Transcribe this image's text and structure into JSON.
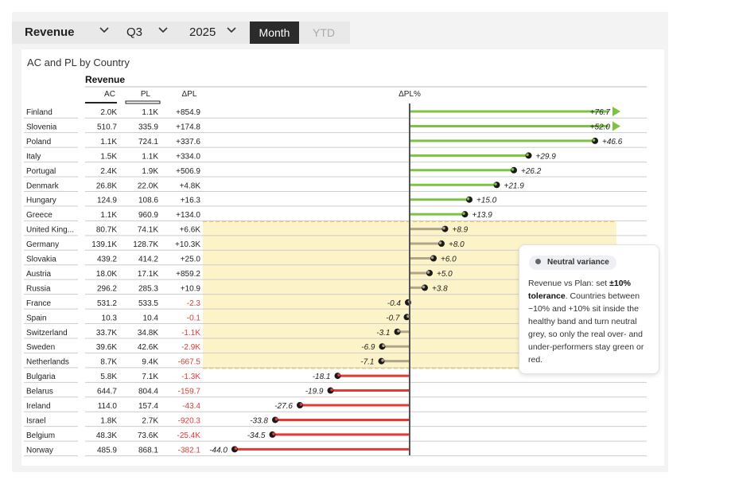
{
  "toolbar": {
    "measure": "Revenue",
    "quarter": "Q3",
    "year": "2025",
    "month_label": "Month",
    "ytd_label": "YTD"
  },
  "tooltip": {
    "pill": "Neutral variance",
    "text_before": "Revenue vs Plan: set ",
    "text_bold": "±10% tolerance",
    "text_after": ". Countries between −10% and +10% sit inside the healthy band and turn neutral grey, so only the real over- and under-performers stay green or red."
  },
  "chart_data": {
    "type": "table",
    "title": "AC and PL by Country",
    "group_header": "Revenue",
    "columns": [
      "AC",
      "PL",
      "ΔPL",
      "ΔPL%"
    ],
    "tolerance_pct": 10,
    "xlim": [
      -44,
      52
    ],
    "colors": {
      "positive": "#7dc242",
      "neutral": "#b0a58a",
      "negative": "#e53935",
      "band": "#fdf3c9",
      "band_border": "#e8c547",
      "negative_text": "#e53935"
    },
    "rows": [
      {
        "country": "Finland",
        "ac": "2.0K",
        "pl": "1.1K",
        "dpl": "+854.9",
        "pct": 76.7,
        "pct_label": "+76.7"
      },
      {
        "country": "Slovenia",
        "ac": "510.7",
        "pl": "335.9",
        "dpl": "+174.8",
        "pct": 52.0,
        "pct_label": "+52.0"
      },
      {
        "country": "Poland",
        "ac": "1.1K",
        "pl": "724.1",
        "dpl": "+337.6",
        "pct": 46.6,
        "pct_label": "+46.6"
      },
      {
        "country": "Italy",
        "ac": "1.5K",
        "pl": "1.1K",
        "dpl": "+334.0",
        "pct": 29.9,
        "pct_label": "+29.9"
      },
      {
        "country": "Portugal",
        "ac": "2.4K",
        "pl": "1.9K",
        "dpl": "+506.9",
        "pct": 26.2,
        "pct_label": "+26.2"
      },
      {
        "country": "Denmark",
        "ac": "26.8K",
        "pl": "22.0K",
        "dpl": "+4.8K",
        "pct": 21.9,
        "pct_label": "+21.9"
      },
      {
        "country": "Hungary",
        "ac": "124.9",
        "pl": "108.6",
        "dpl": "+16.3",
        "pct": 15.0,
        "pct_label": "+15.0"
      },
      {
        "country": "Greece",
        "ac": "1.1K",
        "pl": "960.9",
        "dpl": "+134.0",
        "pct": 13.9,
        "pct_label": "+13.9"
      },
      {
        "country": "United King...",
        "ac": "80.7K",
        "pl": "74.1K",
        "dpl": "+6.6K",
        "pct": 8.9,
        "pct_label": "+8.9"
      },
      {
        "country": "Germany",
        "ac": "139.1K",
        "pl": "128.7K",
        "dpl": "+10.3K",
        "pct": 8.0,
        "pct_label": "+8.0"
      },
      {
        "country": "Slovakia",
        "ac": "439.2",
        "pl": "414.2",
        "dpl": "+25.0",
        "pct": 6.0,
        "pct_label": "+6.0"
      },
      {
        "country": "Austria",
        "ac": "18.0K",
        "pl": "17.1K",
        "dpl": "+859.2",
        "pct": 5.0,
        "pct_label": "+5.0"
      },
      {
        "country": "Russia",
        "ac": "296.2",
        "pl": "285.3",
        "dpl": "+10.9",
        "pct": 3.8,
        "pct_label": "+3.8"
      },
      {
        "country": "France",
        "ac": "531.2",
        "pl": "533.5",
        "dpl": "-2.3",
        "pct": -0.4,
        "pct_label": "-0.4"
      },
      {
        "country": "Spain",
        "ac": "10.3",
        "pl": "10.4",
        "dpl": "-0.1",
        "pct": -0.7,
        "pct_label": "-0.7"
      },
      {
        "country": "Switzerland",
        "ac": "33.7K",
        "pl": "34.8K",
        "dpl": "-1.1K",
        "pct": -3.1,
        "pct_label": "-3.1"
      },
      {
        "country": "Sweden",
        "ac": "39.6K",
        "pl": "42.6K",
        "dpl": "-2.9K",
        "pct": -6.9,
        "pct_label": "-6.9"
      },
      {
        "country": "Netherlands",
        "ac": "8.7K",
        "pl": "9.4K",
        "dpl": "-667.5",
        "pct": -7.1,
        "pct_label": "-7.1"
      },
      {
        "country": "Bulgaria",
        "ac": "5.8K",
        "pl": "7.1K",
        "dpl": "-1.3K",
        "pct": -18.1,
        "pct_label": "-18.1"
      },
      {
        "country": "Belarus",
        "ac": "644.7",
        "pl": "804.4",
        "dpl": "-159.7",
        "pct": -19.9,
        "pct_label": "-19.9"
      },
      {
        "country": "Ireland",
        "ac": "114.0",
        "pl": "157.4",
        "dpl": "-43.4",
        "pct": -27.6,
        "pct_label": "-27.6"
      },
      {
        "country": "Israel",
        "ac": "1.8K",
        "pl": "2.7K",
        "dpl": "-920.3",
        "pct": -33.8,
        "pct_label": "-33.8"
      },
      {
        "country": "Belgium",
        "ac": "48.3K",
        "pl": "73.6K",
        "dpl": "-25.4K",
        "pct": -34.5,
        "pct_label": "-34.5"
      },
      {
        "country": "Norway",
        "ac": "485.9",
        "pl": "868.1",
        "dpl": "-382.1",
        "pct": -44.0,
        "pct_label": "-44.0"
      }
    ]
  }
}
